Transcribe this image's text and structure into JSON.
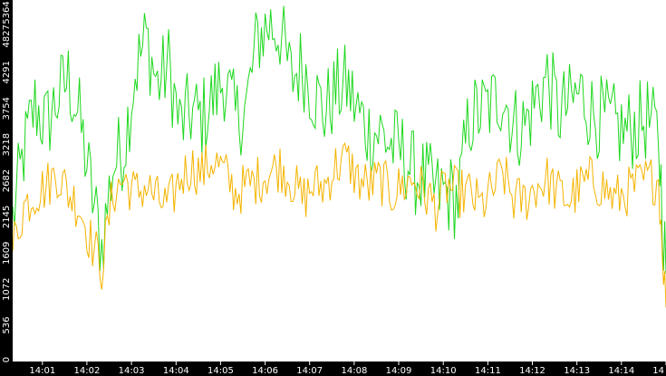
{
  "chart_data": {
    "type": "line",
    "title": "",
    "xlabel": "",
    "ylabel": "",
    "ylim": [
      0,
      5364
    ],
    "xlim": [
      "14:00:20",
      "14:15:00"
    ],
    "y_ticks": [
      "0",
      "536",
      "1072",
      "1609",
      "2145",
      "2682",
      "3218",
      "3754",
      "4291",
      "4827",
      "5364"
    ],
    "x_ticks": [
      "14:01",
      "14:02",
      "14:03",
      "14:04",
      "14:05",
      "14:06",
      "14:07",
      "14:08",
      "14:09",
      "14:10",
      "14:11",
      "14:12",
      "14:13",
      "14:14",
      "14"
    ],
    "grid": false,
    "legend": "none",
    "series_colors": [
      "#1ed81e",
      "#f5b400"
    ],
    "x": [
      "14:00:20",
      "14:00:35",
      "14:00:50",
      "14:01:05",
      "14:01:20",
      "14:01:35",
      "14:01:50",
      "14:02:05",
      "14:02:20",
      "14:02:35",
      "14:02:50",
      "14:03:05",
      "14:03:20",
      "14:03:35",
      "14:03:50",
      "14:04:05",
      "14:04:20",
      "14:04:35",
      "14:04:50",
      "14:05:05",
      "14:05:20",
      "14:05:35",
      "14:05:50",
      "14:06:05",
      "14:06:20",
      "14:06:35",
      "14:06:50",
      "14:07:05",
      "14:07:20",
      "14:07:35",
      "14:07:50",
      "14:08:05",
      "14:08:20",
      "14:08:35",
      "14:08:50",
      "14:09:05",
      "14:09:20",
      "14:09:35",
      "14:09:50",
      "14:10:05",
      "14:10:20",
      "14:10:35",
      "14:10:50",
      "14:11:05",
      "14:11:20",
      "14:11:35",
      "14:11:50",
      "14:12:05",
      "14:12:20",
      "14:12:35",
      "14:12:50",
      "14:13:05",
      "14:13:20",
      "14:13:35",
      "14:13:50",
      "14:14:05",
      "14:14:20",
      "14:14:35",
      "14:14:50",
      "14:15:00"
    ],
    "series": [
      {
        "values": [
          2100,
          3100,
          3800,
          3500,
          3900,
          4200,
          3600,
          2600,
          1700,
          2900,
          3200,
          4300,
          4800,
          4100,
          4400,
          3500,
          3700,
          3600,
          3900,
          4200,
          3600,
          3800,
          4800,
          5000,
          4900,
          4200,
          4400,
          4000,
          3700,
          4000,
          4100,
          3700,
          3400,
          3400,
          3200,
          3100,
          2800,
          2700,
          2500,
          2500,
          2400,
          3600,
          3700,
          3800,
          4000,
          3500,
          3500,
          3900,
          4200,
          3700,
          3800,
          4000,
          3700,
          3600,
          3500,
          3400,
          3500,
          3600,
          3300,
          1300
        ]
      },
      {
        "values": [
          1700,
          2300,
          2500,
          2600,
          2800,
          2500,
          2300,
          1800,
          1400,
          2500,
          2700,
          2500,
          2600,
          2400,
          2300,
          2700,
          2900,
          2800,
          3000,
          2800,
          2500,
          2600,
          2700,
          2800,
          2900,
          2700,
          2400,
          2600,
          2600,
          2900,
          3000,
          2700,
          2600,
          2700,
          2500,
          2600,
          2700,
          2500,
          2300,
          2600,
          2500,
          2500,
          2300,
          2500,
          2800,
          2400,
          2400,
          2600,
          2700,
          2500,
          2400,
          2600,
          2700,
          2600,
          2400,
          2500,
          2600,
          2700,
          2700,
          800
        ]
      }
    ]
  }
}
